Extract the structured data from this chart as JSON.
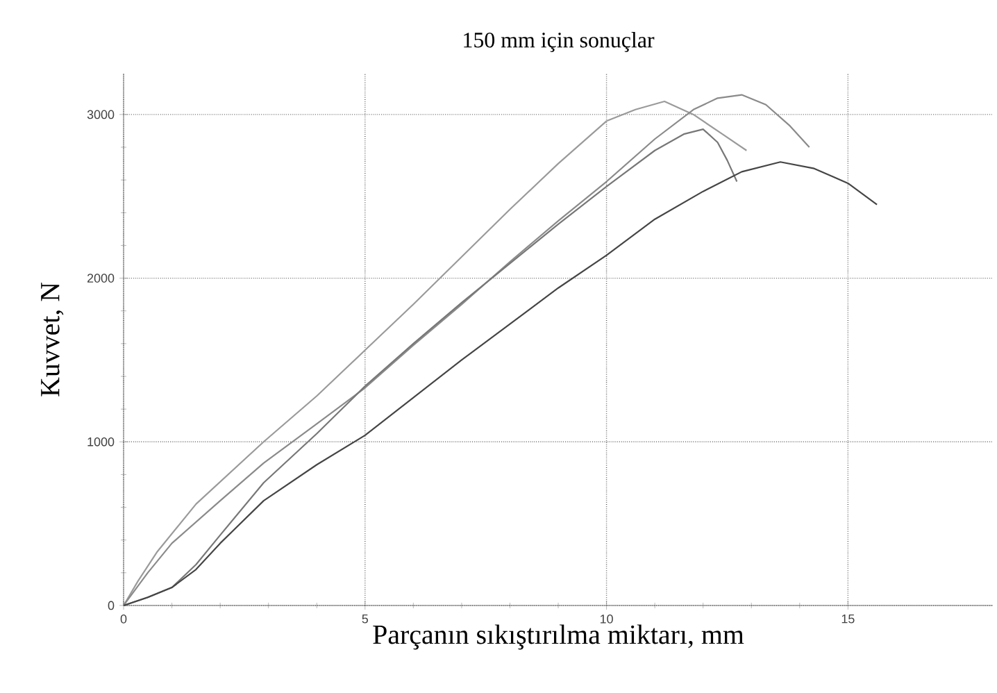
{
  "chart_data": {
    "type": "line",
    "title": "150 mm için sonuçlar",
    "xlabel": "Parçanın sıkıştırılma miktarı, mm",
    "ylabel": "Kuvvet, N",
    "xlim": [
      0,
      18
    ],
    "ylim": [
      0,
      3250
    ],
    "xticks": [
      0,
      5,
      10,
      15
    ],
    "yticks": [
      0,
      1000,
      2000,
      3000
    ],
    "grid": true,
    "marker": "none",
    "line_style": "solid",
    "series": [
      {
        "color": "#9a9a9a",
        "x": [
          0,
          0.3,
          0.7,
          1.5,
          2.9,
          4,
          5,
          6,
          7,
          8,
          9,
          10,
          10.6,
          11.2,
          11.8,
          12.4,
          12.9
        ],
        "values": [
          0,
          150,
          330,
          620,
          1000,
          1280,
          1560,
          1840,
          2130,
          2420,
          2700,
          2960,
          3030,
          3080,
          3000,
          2880,
          2780
        ]
      },
      {
        "color": "#8a8a8a",
        "x": [
          0,
          0.5,
          1,
          2,
          2.9,
          4,
          5,
          6,
          7,
          8,
          9,
          10,
          11,
          11.8,
          12.3,
          12.8,
          13.3,
          13.8,
          14.2
        ],
        "values": [
          0,
          200,
          380,
          640,
          870,
          1110,
          1330,
          1590,
          1840,
          2100,
          2350,
          2590,
          2850,
          3030,
          3100,
          3120,
          3060,
          2930,
          2800
        ]
      },
      {
        "color": "#777777",
        "x": [
          0,
          0.5,
          1,
          1.5,
          2,
          2.9,
          4,
          5,
          6,
          7,
          8,
          9,
          10,
          11,
          11.6,
          12,
          12.3,
          12.5,
          12.7
        ],
        "values": [
          0,
          50,
          110,
          250,
          430,
          750,
          1050,
          1340,
          1600,
          1850,
          2090,
          2330,
          2560,
          2780,
          2880,
          2910,
          2830,
          2720,
          2590
        ]
      },
      {
        "color": "#454545",
        "x": [
          0,
          0.5,
          1,
          1.5,
          2,
          2.9,
          4,
          5,
          6,
          7,
          8,
          9,
          10,
          11,
          12,
          12.8,
          13.6,
          14.3,
          15,
          15.6
        ],
        "values": [
          0,
          50,
          110,
          220,
          380,
          640,
          860,
          1040,
          1270,
          1500,
          1720,
          1940,
          2140,
          2360,
          2530,
          2650,
          2710,
          2670,
          2580,
          2450
        ]
      }
    ]
  }
}
